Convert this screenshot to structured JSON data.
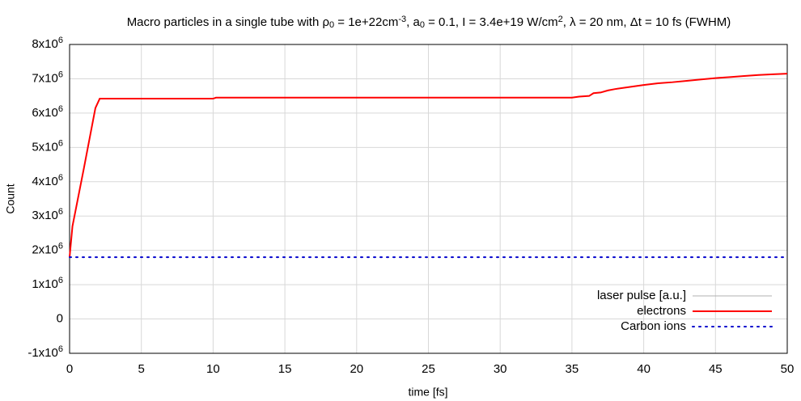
{
  "chart_data": {
    "type": "line",
    "title": [
      {
        "text": "Macro particles in a single tube with ρ",
        "style": "normal"
      },
      {
        "text": "0",
        "style": "sub"
      },
      {
        "text": " = 1e+22cm",
        "style": "normal"
      },
      {
        "text": "-3",
        "style": "sup"
      },
      {
        "text": ", a",
        "style": "normal"
      },
      {
        "text": "0",
        "style": "sub"
      },
      {
        "text": " = 0.1, I = 3.4e+19 W/cm",
        "style": "normal"
      },
      {
        "text": "2",
        "style": "sup"
      },
      {
        "text": ", λ = 20 nm, Δt = 10 fs (FWHM)",
        "style": "normal"
      }
    ],
    "xlabel": "time [fs]",
    "ylabel": "Count",
    "xlim": [
      0,
      50
    ],
    "xticks": [
      0,
      5,
      10,
      15,
      20,
      25,
      30,
      35,
      40,
      45,
      50
    ],
    "ylim": [
      -1000000,
      8000000
    ],
    "yticks": [
      {
        "value": -1000000,
        "label": "-1x10",
        "exponent": "6"
      },
      {
        "value": 0,
        "label": "0"
      },
      {
        "value": 1000000,
        "label": "1x10",
        "exponent": "6"
      },
      {
        "value": 2000000,
        "label": "2x10",
        "exponent": "6"
      },
      {
        "value": 3000000,
        "label": "3x10",
        "exponent": "6"
      },
      {
        "value": 4000000,
        "label": "4x10",
        "exponent": "6"
      },
      {
        "value": 5000000,
        "label": "5x10",
        "exponent": "6"
      },
      {
        "value": 6000000,
        "label": "6x10",
        "exponent": "6"
      },
      {
        "value": 7000000,
        "label": "7x10",
        "exponent": "6"
      },
      {
        "value": 8000000,
        "label": "8x10",
        "exponent": "6"
      }
    ],
    "grid": true,
    "legend": "bottom-right",
    "series": [
      {
        "name": "laser pulse [a.u.]",
        "color": "#b0b0b0",
        "dash": "solid",
        "x": [],
        "values": []
      },
      {
        "name": "electrons",
        "color": "#ff0000",
        "dash": "solid",
        "x": [
          0,
          0.2,
          1,
          1.8,
          2.1,
          10,
          10.2,
          35,
          35.5,
          36.2,
          36.5,
          37,
          37.5,
          38,
          39,
          40,
          41,
          42,
          43,
          44,
          45,
          46,
          47,
          48,
          49,
          50
        ],
        "values": [
          1800000,
          2700000,
          4400000,
          6150000,
          6420000,
          6420000,
          6450000,
          6450000,
          6480000,
          6500000,
          6580000,
          6600000,
          6660000,
          6700000,
          6760000,
          6820000,
          6870000,
          6900000,
          6940000,
          6980000,
          7020000,
          7050000,
          7080000,
          7110000,
          7130000,
          7150000
        ]
      },
      {
        "name": "Carbon ions",
        "color": "#0000cc",
        "dash": "dotted",
        "x": [
          0,
          50
        ],
        "values": [
          1800000,
          1800000
        ]
      }
    ]
  }
}
